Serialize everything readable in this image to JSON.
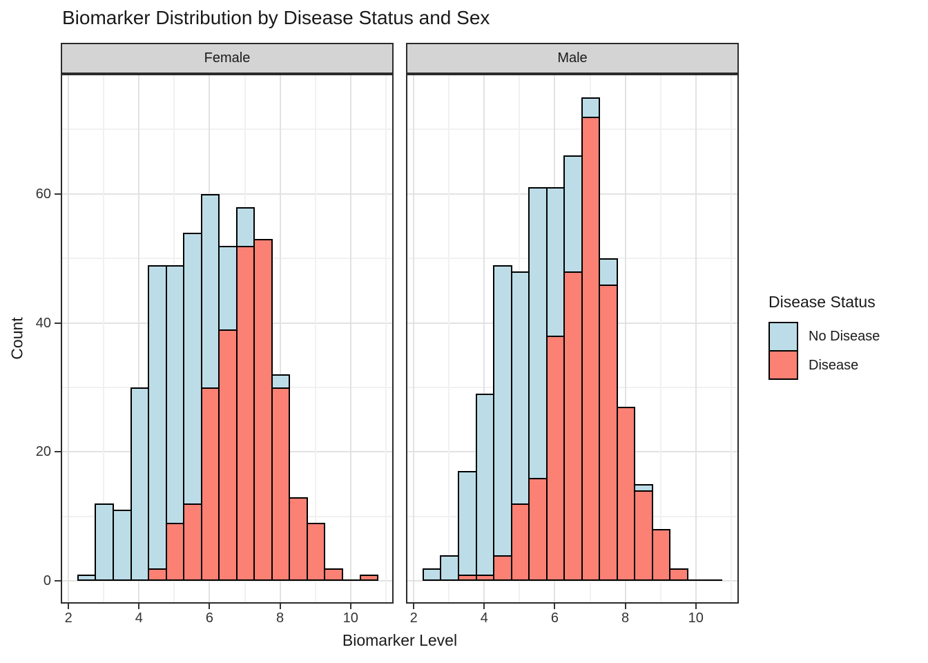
{
  "title": "Biomarker Distribution by Disease Status and Sex",
  "axes": {
    "x_label": "Biomarker Level",
    "y_label": "Count"
  },
  "legend": {
    "title": "Disease Status",
    "items": [
      {
        "label": "No Disease",
        "color": "#BCDDE7"
      },
      {
        "label": "Disease",
        "color": "#FA8174"
      }
    ]
  },
  "style": {
    "bar_outline": "#000000",
    "strip_background": "#D4D4D4",
    "panel_border": "#2B2B2B",
    "grid_major": "#E2E2E2",
    "grid_minor": "#F1F1F1",
    "tick_label_color": "#333333"
  },
  "chart_data": {
    "type": "histogram",
    "title": "Biomarker Distribution by Disease Status and Sex",
    "xlabel": "Biomarker Level",
    "ylabel": "Count",
    "binwidth": 0.5,
    "legend_position": "right",
    "grid": true,
    "facets": [
      "Female",
      "Male"
    ],
    "x_ticks": [
      2,
      4,
      6,
      8,
      10
    ],
    "y_ticks": [
      0,
      20,
      40,
      60
    ],
    "x_minor_gridlines": [
      3,
      5,
      7,
      9,
      11
    ],
    "y_minor_gridlines": [
      10,
      30,
      50,
      70
    ],
    "xlim": [
      1.82,
      11.18
    ],
    "ylim": [
      -3.3,
      78.4
    ],
    "panels": [
      {
        "facet": "Female",
        "series": [
          {
            "name": "No Disease",
            "color": "#BCDDE7",
            "bins": [
              {
                "x0": 2.25,
                "x1": 2.75,
                "count": 1
              },
              {
                "x0": 2.75,
                "x1": 3.25,
                "count": 12
              },
              {
                "x0": 3.25,
                "x1": 3.75,
                "count": 11
              },
              {
                "x0": 3.75,
                "x1": 4.25,
                "count": 30
              },
              {
                "x0": 4.25,
                "x1": 4.75,
                "count": 49
              },
              {
                "x0": 4.75,
                "x1": 5.25,
                "count": 49
              },
              {
                "x0": 5.25,
                "x1": 5.75,
                "count": 54
              },
              {
                "x0": 5.75,
                "x1": 6.25,
                "count": 60
              },
              {
                "x0": 6.25,
                "x1": 6.75,
                "count": 52
              },
              {
                "x0": 6.75,
                "x1": 7.25,
                "count": 58
              },
              {
                "x0": 7.75,
                "x1": 8.25,
                "count": 32
              }
            ]
          },
          {
            "name": "Disease",
            "color": "#FA8174",
            "bins": [
              {
                "x0": 4.25,
                "x1": 4.75,
                "count": 2
              },
              {
                "x0": 4.75,
                "x1": 5.25,
                "count": 9
              },
              {
                "x0": 5.25,
                "x1": 5.75,
                "count": 12
              },
              {
                "x0": 5.75,
                "x1": 6.25,
                "count": 30
              },
              {
                "x0": 6.25,
                "x1": 6.75,
                "count": 39
              },
              {
                "x0": 6.75,
                "x1": 7.25,
                "count": 52
              },
              {
                "x0": 7.25,
                "x1": 7.75,
                "count": 53
              },
              {
                "x0": 7.75,
                "x1": 8.25,
                "count": 30
              },
              {
                "x0": 8.25,
                "x1": 8.75,
                "count": 13
              },
              {
                "x0": 8.75,
                "x1": 9.25,
                "count": 9
              },
              {
                "x0": 9.25,
                "x1": 9.75,
                "count": 2
              },
              {
                "x0": 9.75,
                "x1": 10.25,
                "count": 0
              },
              {
                "x0": 10.25,
                "x1": 10.75,
                "count": 1
              }
            ]
          }
        ]
      },
      {
        "facet": "Male",
        "series": [
          {
            "name": "No Disease",
            "color": "#BCDDE7",
            "bins": [
              {
                "x0": 2.25,
                "x1": 2.75,
                "count": 2
              },
              {
                "x0": 2.75,
                "x1": 3.25,
                "count": 4
              },
              {
                "x0": 3.25,
                "x1": 3.75,
                "count": 17
              },
              {
                "x0": 3.75,
                "x1": 4.25,
                "count": 29
              },
              {
                "x0": 4.25,
                "x1": 4.75,
                "count": 49
              },
              {
                "x0": 4.75,
                "x1": 5.25,
                "count": 48
              },
              {
                "x0": 5.25,
                "x1": 5.75,
                "count": 61
              },
              {
                "x0": 5.75,
                "x1": 6.25,
                "count": 61
              },
              {
                "x0": 6.25,
                "x1": 6.75,
                "count": 66
              },
              {
                "x0": 6.75,
                "x1": 7.25,
                "count": 75
              },
              {
                "x0": 7.25,
                "x1": 7.75,
                "count": 50
              },
              {
                "x0": 8.25,
                "x1": 8.75,
                "count": 15
              }
            ]
          },
          {
            "name": "Disease",
            "color": "#FA8174",
            "bins": [
              {
                "x0": 3.25,
                "x1": 3.75,
                "count": 1
              },
              {
                "x0": 3.75,
                "x1": 4.25,
                "count": 1
              },
              {
                "x0": 4.25,
                "x1": 4.75,
                "count": 4
              },
              {
                "x0": 4.75,
                "x1": 5.25,
                "count": 12
              },
              {
                "x0": 5.25,
                "x1": 5.75,
                "count": 16
              },
              {
                "x0": 5.75,
                "x1": 6.25,
                "count": 38
              },
              {
                "x0": 6.25,
                "x1": 6.75,
                "count": 48
              },
              {
                "x0": 6.75,
                "x1": 7.25,
                "count": 72
              },
              {
                "x0": 7.25,
                "x1": 7.75,
                "count": 46
              },
              {
                "x0": 7.75,
                "x1": 8.25,
                "count": 27
              },
              {
                "x0": 8.25,
                "x1": 8.75,
                "count": 14
              },
              {
                "x0": 8.75,
                "x1": 9.25,
                "count": 8
              },
              {
                "x0": 9.25,
                "x1": 9.75,
                "count": 2
              },
              {
                "x0": 9.75,
                "x1": 10.25,
                "count": 0
              },
              {
                "x0": 10.25,
                "x1": 10.75,
                "count": 0
              }
            ]
          }
        ]
      }
    ]
  }
}
